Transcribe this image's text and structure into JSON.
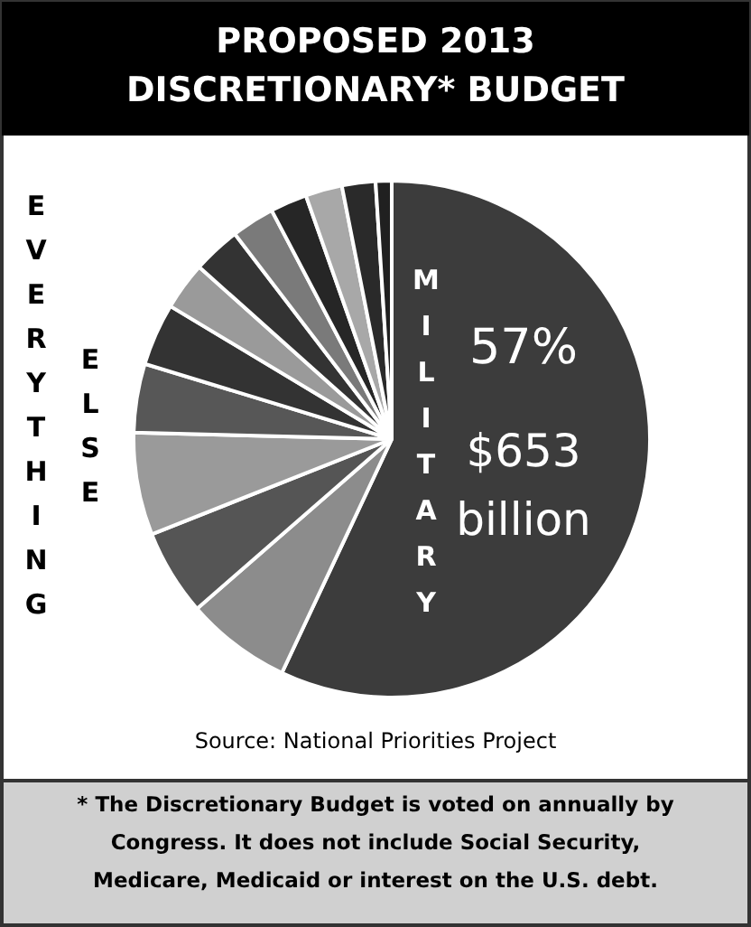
{
  "chart_data": {
    "type": "pie",
    "title": "PROPOSED 2013 DISCRETIONARY* BUDGET",
    "categories": [
      "MILITARY",
      null,
      null,
      null,
      null,
      null,
      null,
      null,
      null,
      null,
      null,
      null,
      null
    ],
    "values": [
      57,
      6.6,
      5.4,
      6.4,
      4.3,
      3.9,
      3.0,
      3.0,
      2.7,
      2.3,
      2.3,
      2.1,
      1.0
    ],
    "colors": [
      "#3c3c3c",
      "#8c8c8c",
      "#555555",
      "#9a9a9a",
      "#575757",
      "#333333",
      "#9a9a9a",
      "#333333",
      "#7a7a7a",
      "#262626",
      "#a8a8a8",
      "#2a2a2a",
      "#202020"
    ],
    "value_labels": [
      "57%",
      null,
      null,
      null,
      null,
      null,
      null,
      null,
      null,
      null,
      null,
      null,
      null
    ],
    "annotations": [
      "EVERYTHING",
      "ELSE",
      "$653 billion",
      "Source: National Priorities Project",
      "* The Discretionary Budget is voted on annually by Congress.  It does not include Social Security, Medicare, Medicaid or interest on the U.S. debt."
    ]
  }
}
